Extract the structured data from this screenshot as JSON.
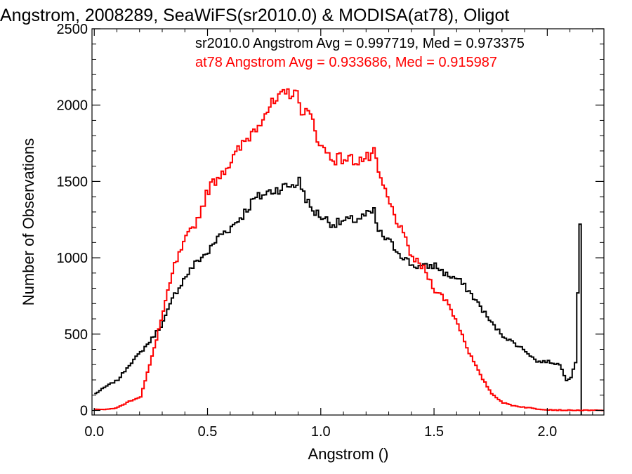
{
  "chart_data": {
    "type": "line",
    "title": "Angstrom, 2008289, SeaWiFS(sr2010.0) & MODISA(at78), Oligot",
    "xlabel": "Angstrom ()",
    "ylabel": "Number of Observations",
    "xlim": [
      -0.01,
      2.25
    ],
    "ylim": [
      -30,
      2500
    ],
    "x_ticks": [
      0.0,
      0.5,
      1.0,
      1.5,
      2.0
    ],
    "x_tick_labels": [
      "0.0",
      "0.5",
      "1.0",
      "1.5",
      "2.0"
    ],
    "y_ticks": [
      0,
      500,
      1000,
      1500,
      2000,
      2500
    ],
    "y_tick_labels": [
      "0",
      "500",
      "1000",
      "1500",
      "2000",
      "2500"
    ],
    "grid": false,
    "legend_placement": "top-right",
    "line_style": "histogram-step",
    "series": [
      {
        "name": "sr2010.0 Angstrom Avg = 0.997719, Med = 0.973375",
        "color": "#000000",
        "x": [
          0.0,
          0.05,
          0.1,
          0.15,
          0.2,
          0.25,
          0.3,
          0.35,
          0.4,
          0.45,
          0.5,
          0.55,
          0.6,
          0.65,
          0.7,
          0.75,
          0.8,
          0.85,
          0.88,
          0.9,
          0.92,
          0.95,
          1.0,
          1.05,
          1.1,
          1.15,
          1.2,
          1.23,
          1.25,
          1.3,
          1.35,
          1.4,
          1.45,
          1.5,
          1.55,
          1.6,
          1.65,
          1.7,
          1.75,
          1.8,
          1.85,
          1.9,
          1.95,
          2.0,
          2.05,
          2.08,
          2.1,
          2.12,
          2.14
        ],
        "values": [
          110,
          160,
          200,
          300,
          380,
          470,
          580,
          760,
          880,
          980,
          1040,
          1150,
          1200,
          1280,
          1380,
          1420,
          1450,
          1470,
          1480,
          1500,
          1430,
          1320,
          1270,
          1220,
          1240,
          1250,
          1280,
          1300,
          1170,
          1100,
          1020,
          950,
          940,
          950,
          890,
          860,
          780,
          680,
          570,
          490,
          440,
          390,
          320,
          320,
          300,
          200,
          220,
          320,
          1220
        ]
      },
      {
        "name": "at78 Angstrom Avg = 0.933686, Med = 0.915987",
        "color": "#ff0000",
        "x": [
          0.0,
          0.05,
          0.1,
          0.15,
          0.2,
          0.25,
          0.3,
          0.35,
          0.4,
          0.45,
          0.5,
          0.55,
          0.6,
          0.65,
          0.7,
          0.75,
          0.8,
          0.85,
          0.88,
          0.9,
          0.95,
          1.0,
          1.05,
          1.1,
          1.15,
          1.2,
          1.23,
          1.25,
          1.3,
          1.35,
          1.4,
          1.45,
          1.5,
          1.55,
          1.6,
          1.65,
          1.7,
          1.75,
          1.8,
          1.85,
          1.9,
          1.95,
          2.0,
          2.05,
          2.1,
          2.15,
          2.2,
          2.25
        ],
        "values": [
          10,
          5,
          20,
          60,
          90,
          350,
          650,
          950,
          1120,
          1250,
          1450,
          1550,
          1630,
          1740,
          1840,
          1960,
          2020,
          2080,
          2100,
          2000,
          1920,
          1720,
          1650,
          1650,
          1640,
          1650,
          1680,
          1550,
          1350,
          1180,
          1000,
          930,
          790,
          720,
          570,
          380,
          230,
          110,
          50,
          30,
          20,
          10,
          5,
          2,
          0,
          0,
          0,
          0
        ]
      }
    ]
  }
}
